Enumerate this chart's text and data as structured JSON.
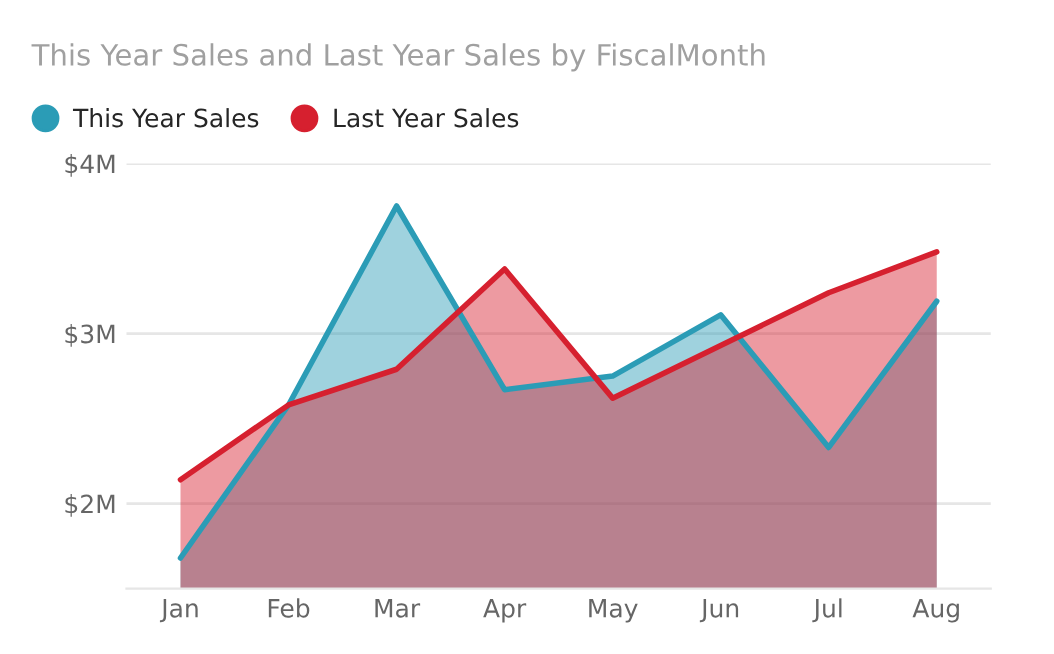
{
  "chart_data": {
    "type": "area",
    "title": "This Year Sales and Last Year Sales by FiscalMonth",
    "categories": [
      "Jan",
      "Feb",
      "Mar",
      "Apr",
      "May",
      "Jun",
      "Jul",
      "Aug"
    ],
    "series": [
      {
        "name": "This Year Sales",
        "color": "#2b9cb6",
        "values": [
          1.68,
          2.58,
          3.75,
          2.67,
          2.75,
          3.11,
          2.33,
          3.19
        ]
      },
      {
        "name": "Last Year Sales",
        "color": "#d6202f",
        "values": [
          2.14,
          2.58,
          2.79,
          3.38,
          2.62,
          2.93,
          3.24,
          3.48
        ]
      }
    ],
    "ylim": [
      1.5,
      4.0
    ],
    "yticks": [
      {
        "value": 2,
        "label": "$2M"
      },
      {
        "value": 3,
        "label": "$3M"
      },
      {
        "value": 4,
        "label": "$4M"
      }
    ],
    "grid": "y",
    "legend": "top left"
  }
}
